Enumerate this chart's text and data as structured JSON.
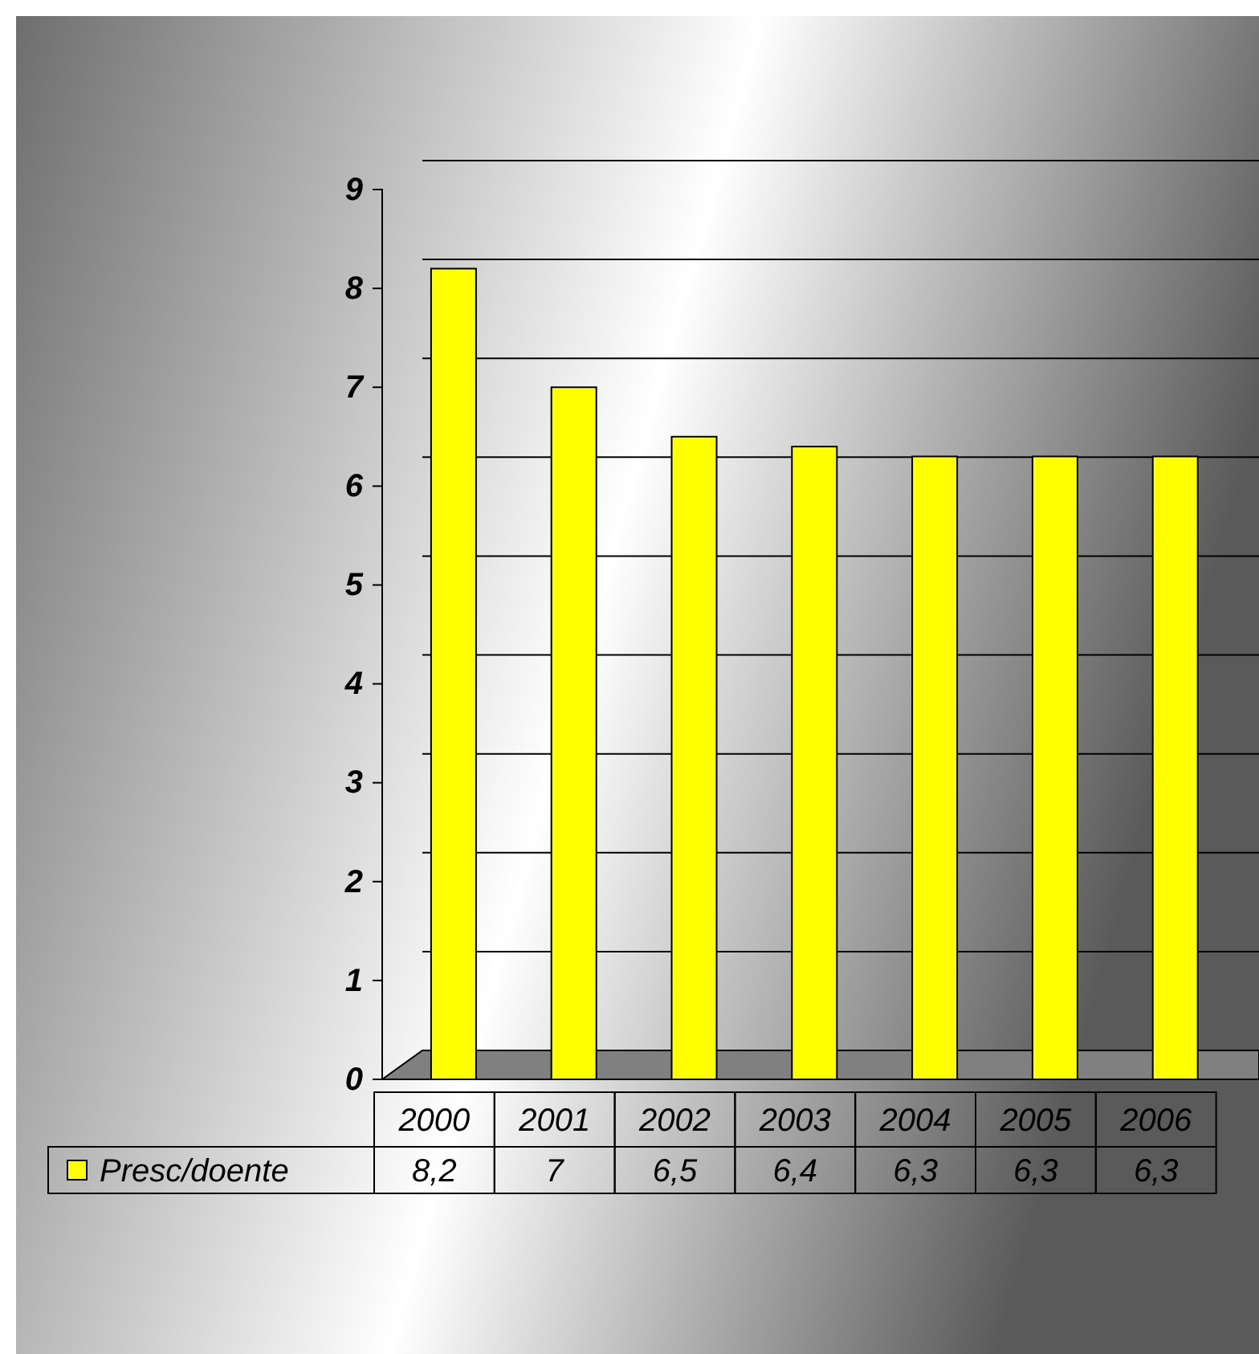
{
  "chart_data": {
    "type": "bar",
    "categories": [
      "2000",
      "2001",
      "2002",
      "2003",
      "2004",
      "2005",
      "2006"
    ],
    "series": [
      {
        "name": "Presc/doente",
        "color": "#ffff00",
        "values": [
          8.2,
          7,
          6.5,
          6.4,
          6.3,
          6.3,
          6.3
        ],
        "value_labels": [
          "8,2",
          "7",
          "6,5",
          "6,4",
          "6,3",
          "6,3",
          "6,3"
        ]
      }
    ],
    "ylim": [
      0,
      9
    ],
    "yticks": [
      0,
      1,
      2,
      3,
      4,
      5,
      6,
      7,
      8,
      9
    ],
    "grid": "y",
    "legend": "bottom left"
  }
}
